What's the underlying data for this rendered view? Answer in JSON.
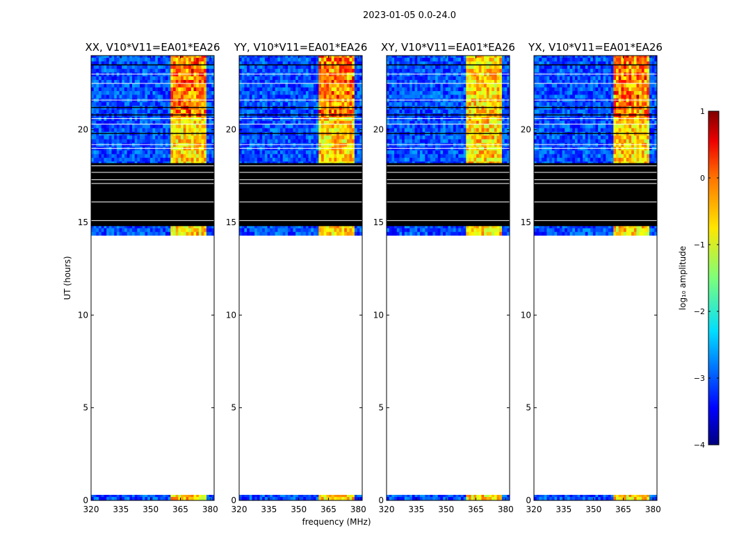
{
  "chart_data": {
    "type": "heatmap",
    "title": "2023-01-05 0.0-24.0",
    "xlabel": "frequency (MHz)",
    "ylabel": "UT (hours)",
    "xlim": [
      320,
      382
    ],
    "ylim": [
      0,
      24
    ],
    "xticks": [
      320,
      335,
      350,
      365,
      380
    ],
    "yticks": [
      0,
      5,
      10,
      15,
      20
    ],
    "colorbar": {
      "label": "log₁₀ amplitude",
      "min": -4,
      "max": 1,
      "ticks": [
        1,
        0,
        -1,
        -2,
        -3,
        -4
      ],
      "tick_labels": [
        "1",
        "0",
        "−1",
        "−2",
        "−3",
        "−4"
      ],
      "colormap": "jet"
    },
    "panels": [
      {
        "title": "XX, V10*V11=EA01*EA26"
      },
      {
        "title": "YY, V10*V11=EA01*EA26"
      },
      {
        "title": "XY, V10*V11=EA01*EA26"
      },
      {
        "title": "YX, V10*V11=EA01*EA26"
      }
    ],
    "time_coverage": {
      "data_ranges_hours": [
        [
          0.0,
          0.3
        ],
        [
          14.3,
          24.0
        ]
      ],
      "blanked_range_hours": [
        14.8,
        18.2
      ],
      "gap_range_hours": [
        0.3,
        14.3
      ]
    },
    "band_structure": {
      "bright_band_mhz": [
        360,
        378
      ],
      "background_log_amplitude": -3,
      "bright_band_log_amplitude": -0.8
    }
  }
}
